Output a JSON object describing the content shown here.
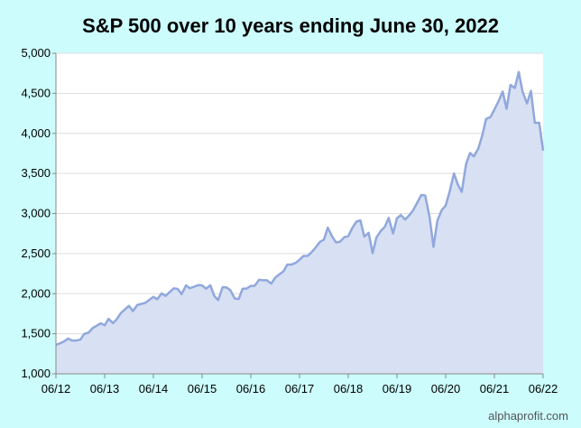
{
  "chart_data": {
    "type": "area",
    "title": "S&P 500 over 10 years ending June 30, 2022",
    "xlabel": "",
    "ylabel": "",
    "ylim": [
      1000,
      5000
    ],
    "y_ticks": [
      "1,000",
      "1,500",
      "2,000",
      "2,500",
      "3,000",
      "3,500",
      "4,000",
      "4,500",
      "5,000"
    ],
    "x_ticks": [
      "06/12",
      "06/13",
      "06/14",
      "06/15",
      "06/16",
      "06/17",
      "06/18",
      "06/19",
      "06/20",
      "06/21",
      "06/22"
    ],
    "grid": true,
    "legend": "none",
    "line_color": "#90a8dc",
    "fill_color": "#d8e0f4",
    "plot_bg": "#ffffff",
    "series": [
      {
        "x": [
          2012.5,
          2012.58,
          2012.67,
          2012.75,
          2012.83,
          2012.92,
          2013.0,
          2013.08,
          2013.17,
          2013.25,
          2013.33,
          2013.42,
          2013.5,
          2013.58,
          2013.67,
          2013.75,
          2013.83,
          2013.92,
          2014.0,
          2014.08,
          2014.17,
          2014.25,
          2014.33,
          2014.42,
          2014.5,
          2014.58,
          2014.67,
          2014.75,
          2014.83,
          2014.92,
          2015.0,
          2015.08,
          2015.17,
          2015.25,
          2015.33,
          2015.42,
          2015.5,
          2015.58,
          2015.67,
          2015.75,
          2015.83,
          2015.92,
          2016.0,
          2016.08,
          2016.17,
          2016.25,
          2016.33,
          2016.42,
          2016.5,
          2016.58,
          2016.67,
          2016.75,
          2016.83,
          2016.92,
          2017.0,
          2017.08,
          2017.17,
          2017.25,
          2017.33,
          2017.42,
          2017.5,
          2017.58,
          2017.67,
          2017.75,
          2017.83,
          2017.92,
          2018.0,
          2018.08,
          2018.17,
          2018.25,
          2018.33,
          2018.42,
          2018.5,
          2018.58,
          2018.67,
          2018.75,
          2018.83,
          2018.92,
          2019.0,
          2019.08,
          2019.17,
          2019.25,
          2019.33,
          2019.42,
          2019.5,
          2019.58,
          2019.67,
          2019.75,
          2019.83,
          2019.92,
          2020.0,
          2020.08,
          2020.17,
          2020.25,
          2020.33,
          2020.42,
          2020.5,
          2020.58,
          2020.67,
          2020.75,
          2020.83,
          2020.92,
          2021.0,
          2021.08,
          2021.17,
          2021.25,
          2021.33,
          2021.42,
          2021.5,
          2021.58,
          2021.67,
          2021.75,
          2021.83,
          2021.92,
          2022.0,
          2022.08,
          2022.17,
          2022.25,
          2022.33,
          2022.42,
          2022.5
        ],
        "values": [
          1362,
          1379,
          1406,
          1440,
          1416,
          1416,
          1426,
          1498,
          1514,
          1569,
          1598,
          1631,
          1606,
          1686,
          1633,
          1682,
          1757,
          1806,
          1848,
          1783,
          1859,
          1872,
          1884,
          1924,
          1960,
          1931,
          2003,
          1972,
          2018,
          2067,
          2059,
          1995,
          2104,
          2068,
          2086,
          2107,
          2104,
          2063,
          2104,
          1972,
          1920,
          2080,
          2079,
          2044,
          1940,
          1932,
          2060,
          2065,
          2097,
          2099,
          2174,
          2168,
          2168,
          2126,
          2199,
          2239,
          2279,
          2363,
          2363,
          2384,
          2423,
          2470,
          2472,
          2519,
          2575,
          2648,
          2674,
          2824,
          2713,
          2640,
          2648,
          2705,
          2718,
          2816,
          2901,
          2914,
          2712,
          2760,
          2506,
          2704,
          2784,
          2834,
          2946,
          2752,
          2941,
          2980,
          2926,
          2977,
          3038,
          3141,
          3231,
          3226,
          2954,
          2585,
          2912,
          3044,
          3100,
          3271,
          3500,
          3363,
          3270,
          3622,
          3756,
          3714,
          3811,
          3973,
          4181,
          4204,
          4298,
          4395,
          4522,
          4307,
          4605,
          4567,
          4766,
          4516,
          4374,
          4530,
          4132,
          4132,
          3785
        ]
      }
    ]
  },
  "credit": "alphaprofit.com"
}
